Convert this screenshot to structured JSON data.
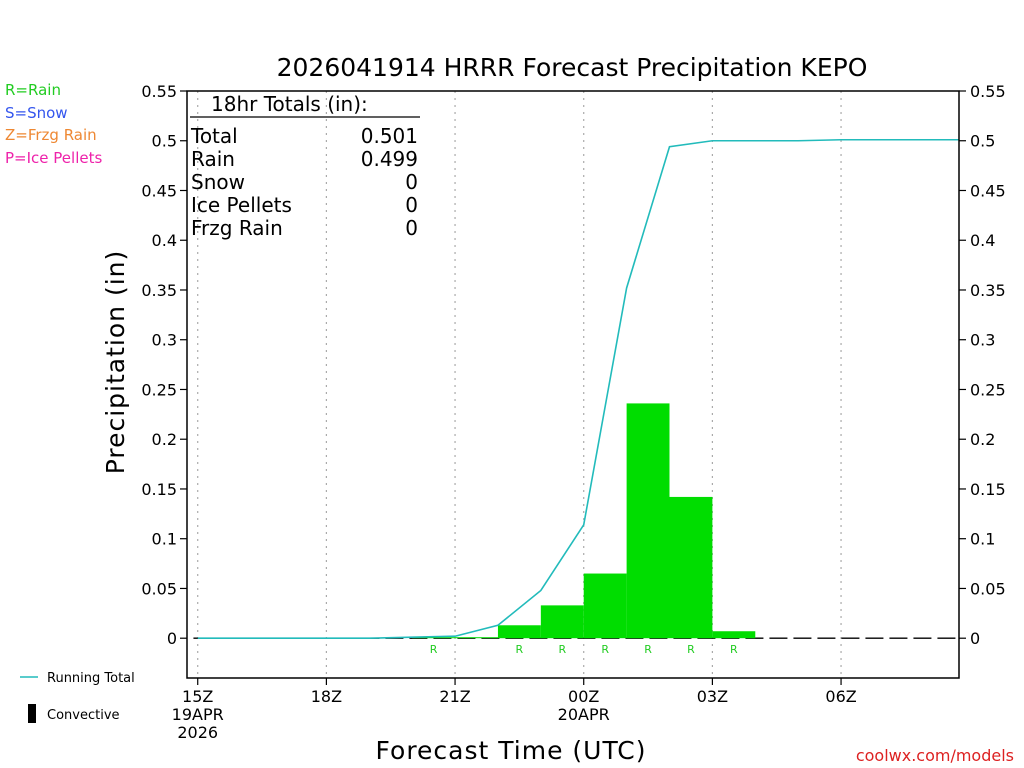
{
  "title": "2026041914 HRRR Forecast Precipitation KEPO",
  "precip_legend": [
    {
      "label": "R=Rain",
      "color": "#22cc22"
    },
    {
      "label": "S=Snow",
      "color": "#3355ee"
    },
    {
      "label": "Z=Frzg Rain",
      "color": "#ee8833"
    },
    {
      "label": "P=Ice Pellets",
      "color": "#ee22aa"
    }
  ],
  "totals": {
    "header": "18hr Totals (in):",
    "rows": [
      {
        "label": "Total",
        "value": "0.501"
      },
      {
        "label": "Rain",
        "value": "0.499"
      },
      {
        "label": "Snow",
        "value": "0"
      },
      {
        "label": "Ice Pellets",
        "value": "0"
      },
      {
        "label": "Frzg Rain",
        "value": "0"
      }
    ]
  },
  "bottom_legend": {
    "running_total": "Running Total",
    "convective": "Convective"
  },
  "credit": "coolwx.com/models",
  "colors": {
    "bar": "#00dd00",
    "line": "#22bbbb",
    "rain_marker": "#22cc22",
    "credit": "#dd2222",
    "grid": "#aaaaaa"
  },
  "chart_data": {
    "type": "bar",
    "title": "2026041914 HRRR Forecast Precipitation KEPO",
    "xlabel": "Forecast Time (UTC)",
    "ylabel": "Precipitation (in)",
    "x_unit": "hour from 15Z 19APR 2026",
    "xlim": [
      -0.25,
      17.75
    ],
    "ylim": [
      -0.04,
      0.55
    ],
    "yticks": [
      0,
      0.05,
      0.1,
      0.15,
      0.2,
      0.25,
      0.3,
      0.35,
      0.4,
      0.45,
      0.5,
      0.55
    ],
    "ytick_labels": [
      "0",
      "0.05",
      "0.1",
      "0.15",
      "0.2",
      "0.25",
      "0.3",
      "0.35",
      "0.4",
      "0.45",
      "0.5",
      "0.55"
    ],
    "xticks": [
      {
        "x": 0,
        "lines": [
          "15Z",
          "19APR",
          "2026"
        ]
      },
      {
        "x": 3,
        "lines": [
          "18Z"
        ]
      },
      {
        "x": 6,
        "lines": [
          "21Z"
        ]
      },
      {
        "x": 9,
        "lines": [
          "00Z",
          "20APR"
        ]
      },
      {
        "x": 12,
        "lines": [
          "03Z"
        ]
      },
      {
        "x": 15,
        "lines": [
          "06Z"
        ]
      }
    ],
    "grid": "vertical dotted at x ticks",
    "bars": {
      "name": "Hourly precipitation",
      "x_start": [
        5,
        6,
        7,
        8,
        9,
        10,
        11,
        12
      ],
      "values": [
        0.001,
        0.001,
        0.013,
        0.033,
        0.065,
        0.236,
        0.142,
        0.007
      ]
    },
    "running_total": {
      "name": "Running Total",
      "x": [
        0,
        1,
        2,
        3,
        4,
        5,
        6,
        7,
        8,
        9,
        10,
        11,
        12,
        13,
        14,
        15,
        16,
        17,
        17.75
      ],
      "values": [
        0,
        0,
        0,
        0,
        0,
        0.001,
        0.002,
        0.013,
        0.048,
        0.114,
        0.352,
        0.494,
        0.5,
        0.5,
        0.5,
        0.501,
        0.501,
        0.501,
        0.501
      ]
    },
    "ptype_markers": {
      "label": "R",
      "x": [
        5,
        7,
        8,
        9,
        10,
        11,
        12
      ]
    }
  }
}
